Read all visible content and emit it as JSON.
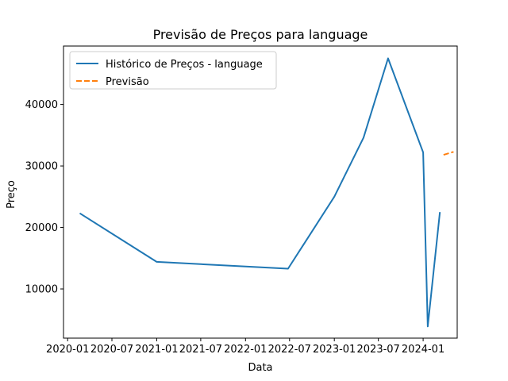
{
  "chart_data": {
    "type": "line",
    "title": "Previsão de Preços para language",
    "xlabel": "Data",
    "ylabel": "Preço",
    "grid": false,
    "legend_position": "top-left",
    "x_type": "date",
    "xlim": [
      "2019-12-15",
      "2024-05-20"
    ],
    "ylim": [
      2000,
      49500
    ],
    "x_ticks": [
      "2020-01",
      "2020-07",
      "2021-01",
      "2021-07",
      "2022-01",
      "2022-07",
      "2023-01",
      "2023-07",
      "2024-01"
    ],
    "y_ticks": [
      10000,
      20000,
      30000,
      40000
    ],
    "series": [
      {
        "name": "Histórico de Preços - language",
        "color": "#1f77b4",
        "style": "solid",
        "x": [
          "2020-02-20",
          "2021-01-01",
          "2022-06-25",
          "2023-01-01",
          "2023-05-01",
          "2023-08-10",
          "2024-01-01",
          "2024-01-20",
          "2024-03-10"
        ],
        "y": [
          22300,
          14400,
          13300,
          25000,
          34600,
          47500,
          32200,
          3900,
          22500
        ]
      },
      {
        "name": "Previsão",
        "color": "#ff7f0e",
        "style": "dashed",
        "x": [
          "2024-03-25",
          "2024-05-05"
        ],
        "y": [
          31800,
          32300
        ]
      }
    ]
  }
}
